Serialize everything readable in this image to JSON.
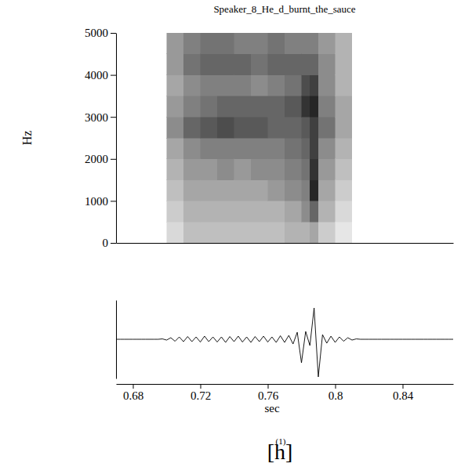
{
  "chart_data": [
    {
      "type": "heatmap",
      "title": "Speaker_8_He_d_burnt_the_sauce",
      "ylabel": "Hz",
      "xlim": [
        0.67,
        0.87
      ],
      "ylim": [
        0,
        5000
      ],
      "yticks": [
        0,
        1000,
        2000,
        3000,
        4000,
        5000
      ],
      "tick_labels": "y",
      "color": "#000000",
      "zlim": [
        0,
        1
      ],
      "x_edges": [
        0.67,
        0.68,
        0.69,
        0.7,
        0.71,
        0.72,
        0.73,
        0.74,
        0.75,
        0.76,
        0.77,
        0.78,
        0.785,
        0.79,
        0.8,
        0.81,
        0.82,
        0.83,
        0.84,
        0.85,
        0.86,
        0.87
      ],
      "y_edges": [
        0,
        500,
        1000,
        1500,
        2000,
        2500,
        3000,
        3500,
        4000,
        4500,
        5000
      ],
      "z": [
        [
          0,
          0,
          0,
          0,
          0,
          0,
          0,
          0,
          0,
          0
        ],
        [
          0,
          0,
          0,
          0,
          0,
          0,
          0,
          0,
          0,
          0
        ],
        [
          0,
          0,
          0,
          0,
          0,
          0,
          0,
          0,
          0,
          0
        ],
        [
          0.15,
          0.2,
          0.25,
          0.3,
          0.35,
          0.45,
          0.4,
          0.35,
          0.4,
          0.4
        ],
        [
          0.25,
          0.3,
          0.35,
          0.4,
          0.45,
          0.6,
          0.5,
          0.45,
          0.55,
          0.5
        ],
        [
          0.25,
          0.3,
          0.35,
          0.4,
          0.5,
          0.65,
          0.55,
          0.5,
          0.6,
          0.55
        ],
        [
          0.25,
          0.3,
          0.35,
          0.45,
          0.5,
          0.7,
          0.6,
          0.5,
          0.6,
          0.55
        ],
        [
          0.25,
          0.3,
          0.35,
          0.4,
          0.5,
          0.65,
          0.6,
          0.5,
          0.6,
          0.5
        ],
        [
          0.25,
          0.3,
          0.35,
          0.45,
          0.5,
          0.65,
          0.6,
          0.45,
          0.55,
          0.5
        ],
        [
          0.25,
          0.3,
          0.4,
          0.45,
          0.5,
          0.6,
          0.6,
          0.5,
          0.6,
          0.55
        ],
        [
          0.3,
          0.35,
          0.45,
          0.5,
          0.55,
          0.6,
          0.65,
          0.55,
          0.6,
          0.5
        ],
        [
          0.3,
          0.45,
          0.5,
          0.55,
          0.6,
          0.65,
          0.8,
          0.7,
          0.6,
          0.5
        ],
        [
          0.35,
          0.6,
          0.85,
          0.8,
          0.75,
          0.75,
          0.85,
          0.75,
          0.6,
          0.5
        ],
        [
          0.2,
          0.3,
          0.35,
          0.4,
          0.45,
          0.55,
          0.5,
          0.45,
          0.45,
          0.4
        ],
        [
          0.1,
          0.15,
          0.2,
          0.25,
          0.3,
          0.35,
          0.35,
          0.3,
          0.3,
          0.3
        ],
        [
          0,
          0,
          0,
          0,
          0,
          0,
          0,
          0,
          0,
          0
        ],
        [
          0,
          0,
          0,
          0,
          0,
          0,
          0,
          0,
          0,
          0
        ],
        [
          0,
          0,
          0,
          0,
          0,
          0,
          0,
          0,
          0,
          0
        ],
        [
          0,
          0,
          0,
          0,
          0,
          0,
          0,
          0,
          0,
          0
        ],
        [
          0,
          0,
          0,
          0,
          0,
          0,
          0,
          0,
          0,
          0
        ],
        [
          0,
          0,
          0,
          0,
          0,
          0,
          0,
          0,
          0,
          0
        ]
      ]
    },
    {
      "type": "line",
      "xlabel": "sec",
      "xlim": [
        0.67,
        0.87
      ],
      "ylim": [
        -50,
        50
      ],
      "xticks": [
        0.68,
        0.72,
        0.76,
        0.8,
        0.84
      ],
      "tick_labels": "x",
      "color": "#000000",
      "annotation": "[h]",
      "annotation_superscript": "(1)",
      "x": [
        0.67,
        0.6725,
        0.675,
        0.6775,
        0.68,
        0.6825,
        0.685,
        0.6875,
        0.69,
        0.6925,
        0.695,
        0.6975,
        0.7,
        0.7025,
        0.705,
        0.7075,
        0.71,
        0.7125,
        0.715,
        0.7175,
        0.72,
        0.7225,
        0.725,
        0.7275,
        0.73,
        0.7325,
        0.735,
        0.7375,
        0.74,
        0.7425,
        0.745,
        0.7475,
        0.75,
        0.7525,
        0.755,
        0.7575,
        0.76,
        0.7625,
        0.765,
        0.7675,
        0.77,
        0.7725,
        0.775,
        0.7775,
        0.78,
        0.7825,
        0.785,
        0.7875,
        0.79,
        0.7925,
        0.795,
        0.7975,
        0.8,
        0.8025,
        0.805,
        0.8075,
        0.81,
        0.8125,
        0.815,
        0.8175,
        0.82,
        0.8225,
        0.825,
        0.8275,
        0.83,
        0.8325,
        0.835,
        0.8375,
        0.84,
        0.8425,
        0.845,
        0.8475,
        0.85,
        0.8525,
        0.855,
        0.8575,
        0.86,
        0.8625,
        0.865,
        0.8675,
        0.87
      ],
      "values": [
        0,
        0,
        0,
        0,
        0,
        0,
        0,
        0,
        0,
        0,
        0,
        0.5,
        -1,
        2,
        -2.5,
        3,
        -3,
        3.5,
        -3,
        3,
        -3.5,
        4,
        -3,
        3,
        -3.5,
        3,
        -4,
        3.5,
        -3,
        4,
        -3.5,
        3,
        -4,
        3.5,
        -3,
        4,
        -3.5,
        3,
        -4,
        4.5,
        -4,
        5,
        -6,
        9,
        -30,
        10,
        -8,
        40,
        -48,
        6,
        -5,
        4,
        -4,
        3,
        -2.5,
        2,
        -1,
        0.5,
        0,
        0,
        0,
        0,
        0,
        0,
        0,
        0,
        0,
        0,
        0,
        0,
        0,
        0,
        0,
        0,
        0,
        0,
        0,
        0,
        0,
        0,
        0
      ]
    }
  ]
}
